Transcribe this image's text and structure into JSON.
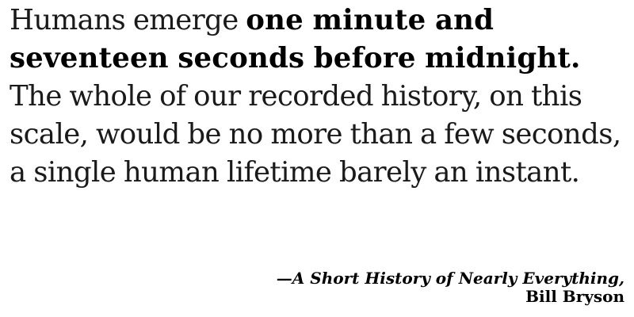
{
  "quote": {
    "lead": "Humans emerge ",
    "emphasis": "one minute and seventeen seconds before midnight.",
    "rest": " The whole of our recorded history, on this scale, would be no more than a few seconds, a single human lifetime barely an instant."
  },
  "attribution": {
    "dash": "—",
    "book_title": "A Short History of Nearly Everything,",
    "author": "Bill Bryson"
  }
}
